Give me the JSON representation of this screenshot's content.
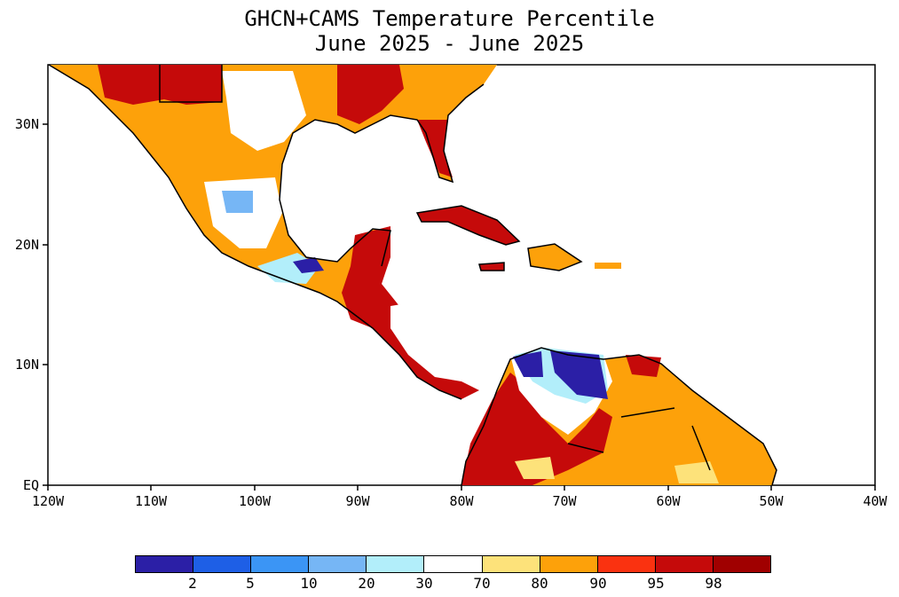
{
  "title": {
    "line1": "GHCN+CAMS Temperature Percentile",
    "line2": "June 2025 - June 2025"
  },
  "map": {
    "lon_range": [
      -120,
      -40
    ],
    "lat_range": [
      0,
      35
    ],
    "lon_ticks": [
      "120W",
      "110W",
      "100W",
      "90W",
      "80W",
      "70W",
      "60W",
      "50W",
      "40W"
    ],
    "lat_ticks": [
      "EQ",
      "10N",
      "20N",
      "30N"
    ]
  },
  "legend": {
    "colors": [
      "#2b1fa6",
      "#1e5fe6",
      "#3b95f5",
      "#76b6f5",
      "#b2eefa",
      "#ffffff",
      "#fde27a",
      "#fda10a",
      "#fa3210",
      "#c50a0a",
      "#a00000"
    ],
    "labels": [
      "2",
      "5",
      "10",
      "20",
      "30",
      "70",
      "80",
      "90",
      "95",
      "98"
    ]
  }
}
